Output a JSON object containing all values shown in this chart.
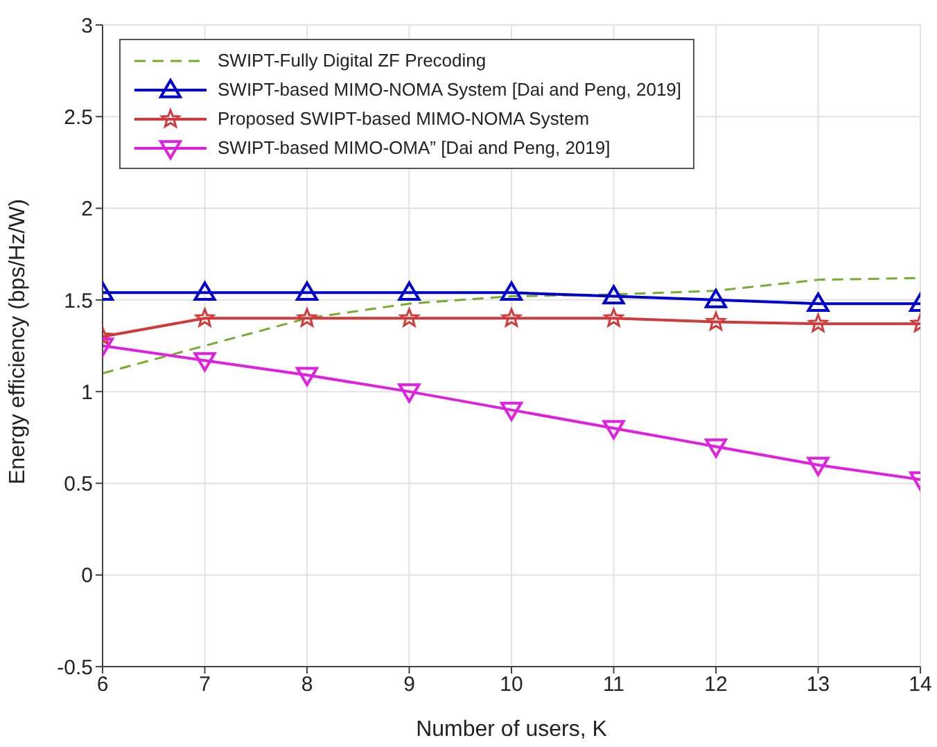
{
  "chart_data": {
    "type": "line",
    "xlabel": "Number of users, K",
    "ylabel": "Energy efficiency (bps/Hz/W)",
    "x": [
      6,
      7,
      8,
      9,
      10,
      11,
      12,
      13,
      14
    ],
    "series": [
      {
        "name": "SWIPT-Fully Digital ZF Precoding",
        "color": "#77ac30",
        "line_style": "dashed",
        "marker": "none",
        "values": [
          1.1,
          1.25,
          1.4,
          1.48,
          1.52,
          1.53,
          1.55,
          1.61,
          1.62
        ]
      },
      {
        "name": "SWIPT-based MIMO-NOMA System [Dai and Peng, 2019]",
        "color": "#0000cc",
        "line_style": "solid",
        "marker": "triangle",
        "values": [
          1.54,
          1.54,
          1.54,
          1.54,
          1.54,
          1.52,
          1.5,
          1.48,
          1.48
        ]
      },
      {
        "name": "Proposed SWIPT-based MIMO-NOMA System",
        "color": "#d03a3a",
        "line_style": "solid",
        "marker": "star",
        "values": [
          1.3,
          1.4,
          1.4,
          1.4,
          1.4,
          1.4,
          1.38,
          1.37,
          1.37
        ]
      },
      {
        "name": "SWIPT-based MIMO-OMA” [Dai and Peng, 2019]",
        "color": "#e020e0",
        "line_style": "solid",
        "marker": "triangle_down",
        "values": [
          1.25,
          1.17,
          1.09,
          1.0,
          0.9,
          0.8,
          0.7,
          0.6,
          0.52
        ]
      }
    ],
    "xlim": [
      6,
      14
    ],
    "xticks": [
      6,
      7,
      8,
      9,
      10,
      11,
      12,
      13,
      14
    ],
    "ylim": [
      -0.5,
      3
    ],
    "yticks": [
      -0.5,
      0,
      0.5,
      1,
      1.5,
      2,
      2.5,
      3
    ],
    "grid": true,
    "legend": "top left"
  }
}
